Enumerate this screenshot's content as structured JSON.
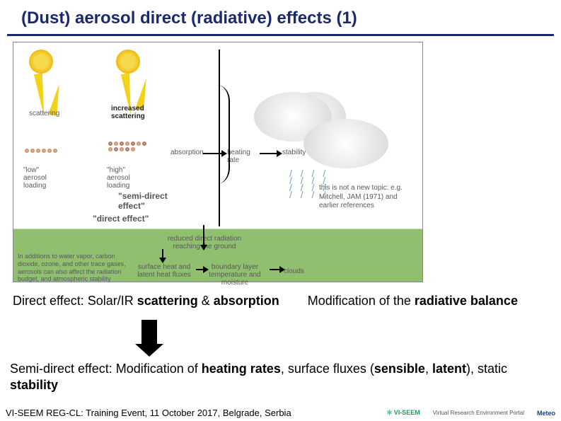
{
  "title": "(Dust) aerosol direct (radiative) effects (1)",
  "diagram": {
    "labels": {
      "scattering": "scattering",
      "increased_scattering": "increased\nscattering",
      "low_aerosol": "\"low\"\naerosol\nloading",
      "high_aerosol": "\"high\"\naerosol\nloading",
      "semi_direct": "\"semi-direct\neffect\"",
      "direct": "\"direct effect\"",
      "absorption": "absorption",
      "heating_rate": "heating\nrate",
      "stability": "stability",
      "reduced_radiation": "reduced direct radiation\nreaching the ground",
      "note": "this is not a new topic: e.g. Mitchell, JAM (1971) and earlier references",
      "surface_fluxes": "surface heat and\nlatent heat fluxes",
      "boundary_layer": "boundary layer\ntemperature and\nmoisture",
      "clouds": "clouds",
      "addition": "In additions to water vapor, carbon dioxide, ozone, and other trace gases, aerosols can also affect the radiation budget, and atmospheric stability"
    },
    "colors": {
      "sun": "#f7d94c",
      "ray": "#f2d21a",
      "ground": "#8fbf6f",
      "aerosol": "#c98a5e",
      "rain": "#7aa0c4",
      "border": "#888888"
    }
  },
  "text": {
    "direct_left_pre": "Direct effect: Solar/IR ",
    "direct_left_b1": "scattering",
    "direct_left_mid": " & ",
    "direct_left_b2": "absorption",
    "direct_right_pre": "Modification of the ",
    "direct_right_b1": "radiative balance",
    "semi_pre": "Semi-direct effect: Modification of ",
    "semi_b1": "heating rates",
    "semi_mid1": ", surface fluxes (",
    "semi_b2": "sensible",
    "semi_mid2": ", ",
    "semi_b3": "latent",
    "semi_mid3": "), static ",
    "semi_b4": "stability"
  },
  "footer": {
    "text": "VI-SEEM REG-CL: Training Event, 11 October 2017, Belgrade, Serbia",
    "logos": {
      "viseem": "VI-SEEM",
      "portal": "Virtual Research Environment Portal",
      "meteo": "Meteo"
    }
  }
}
